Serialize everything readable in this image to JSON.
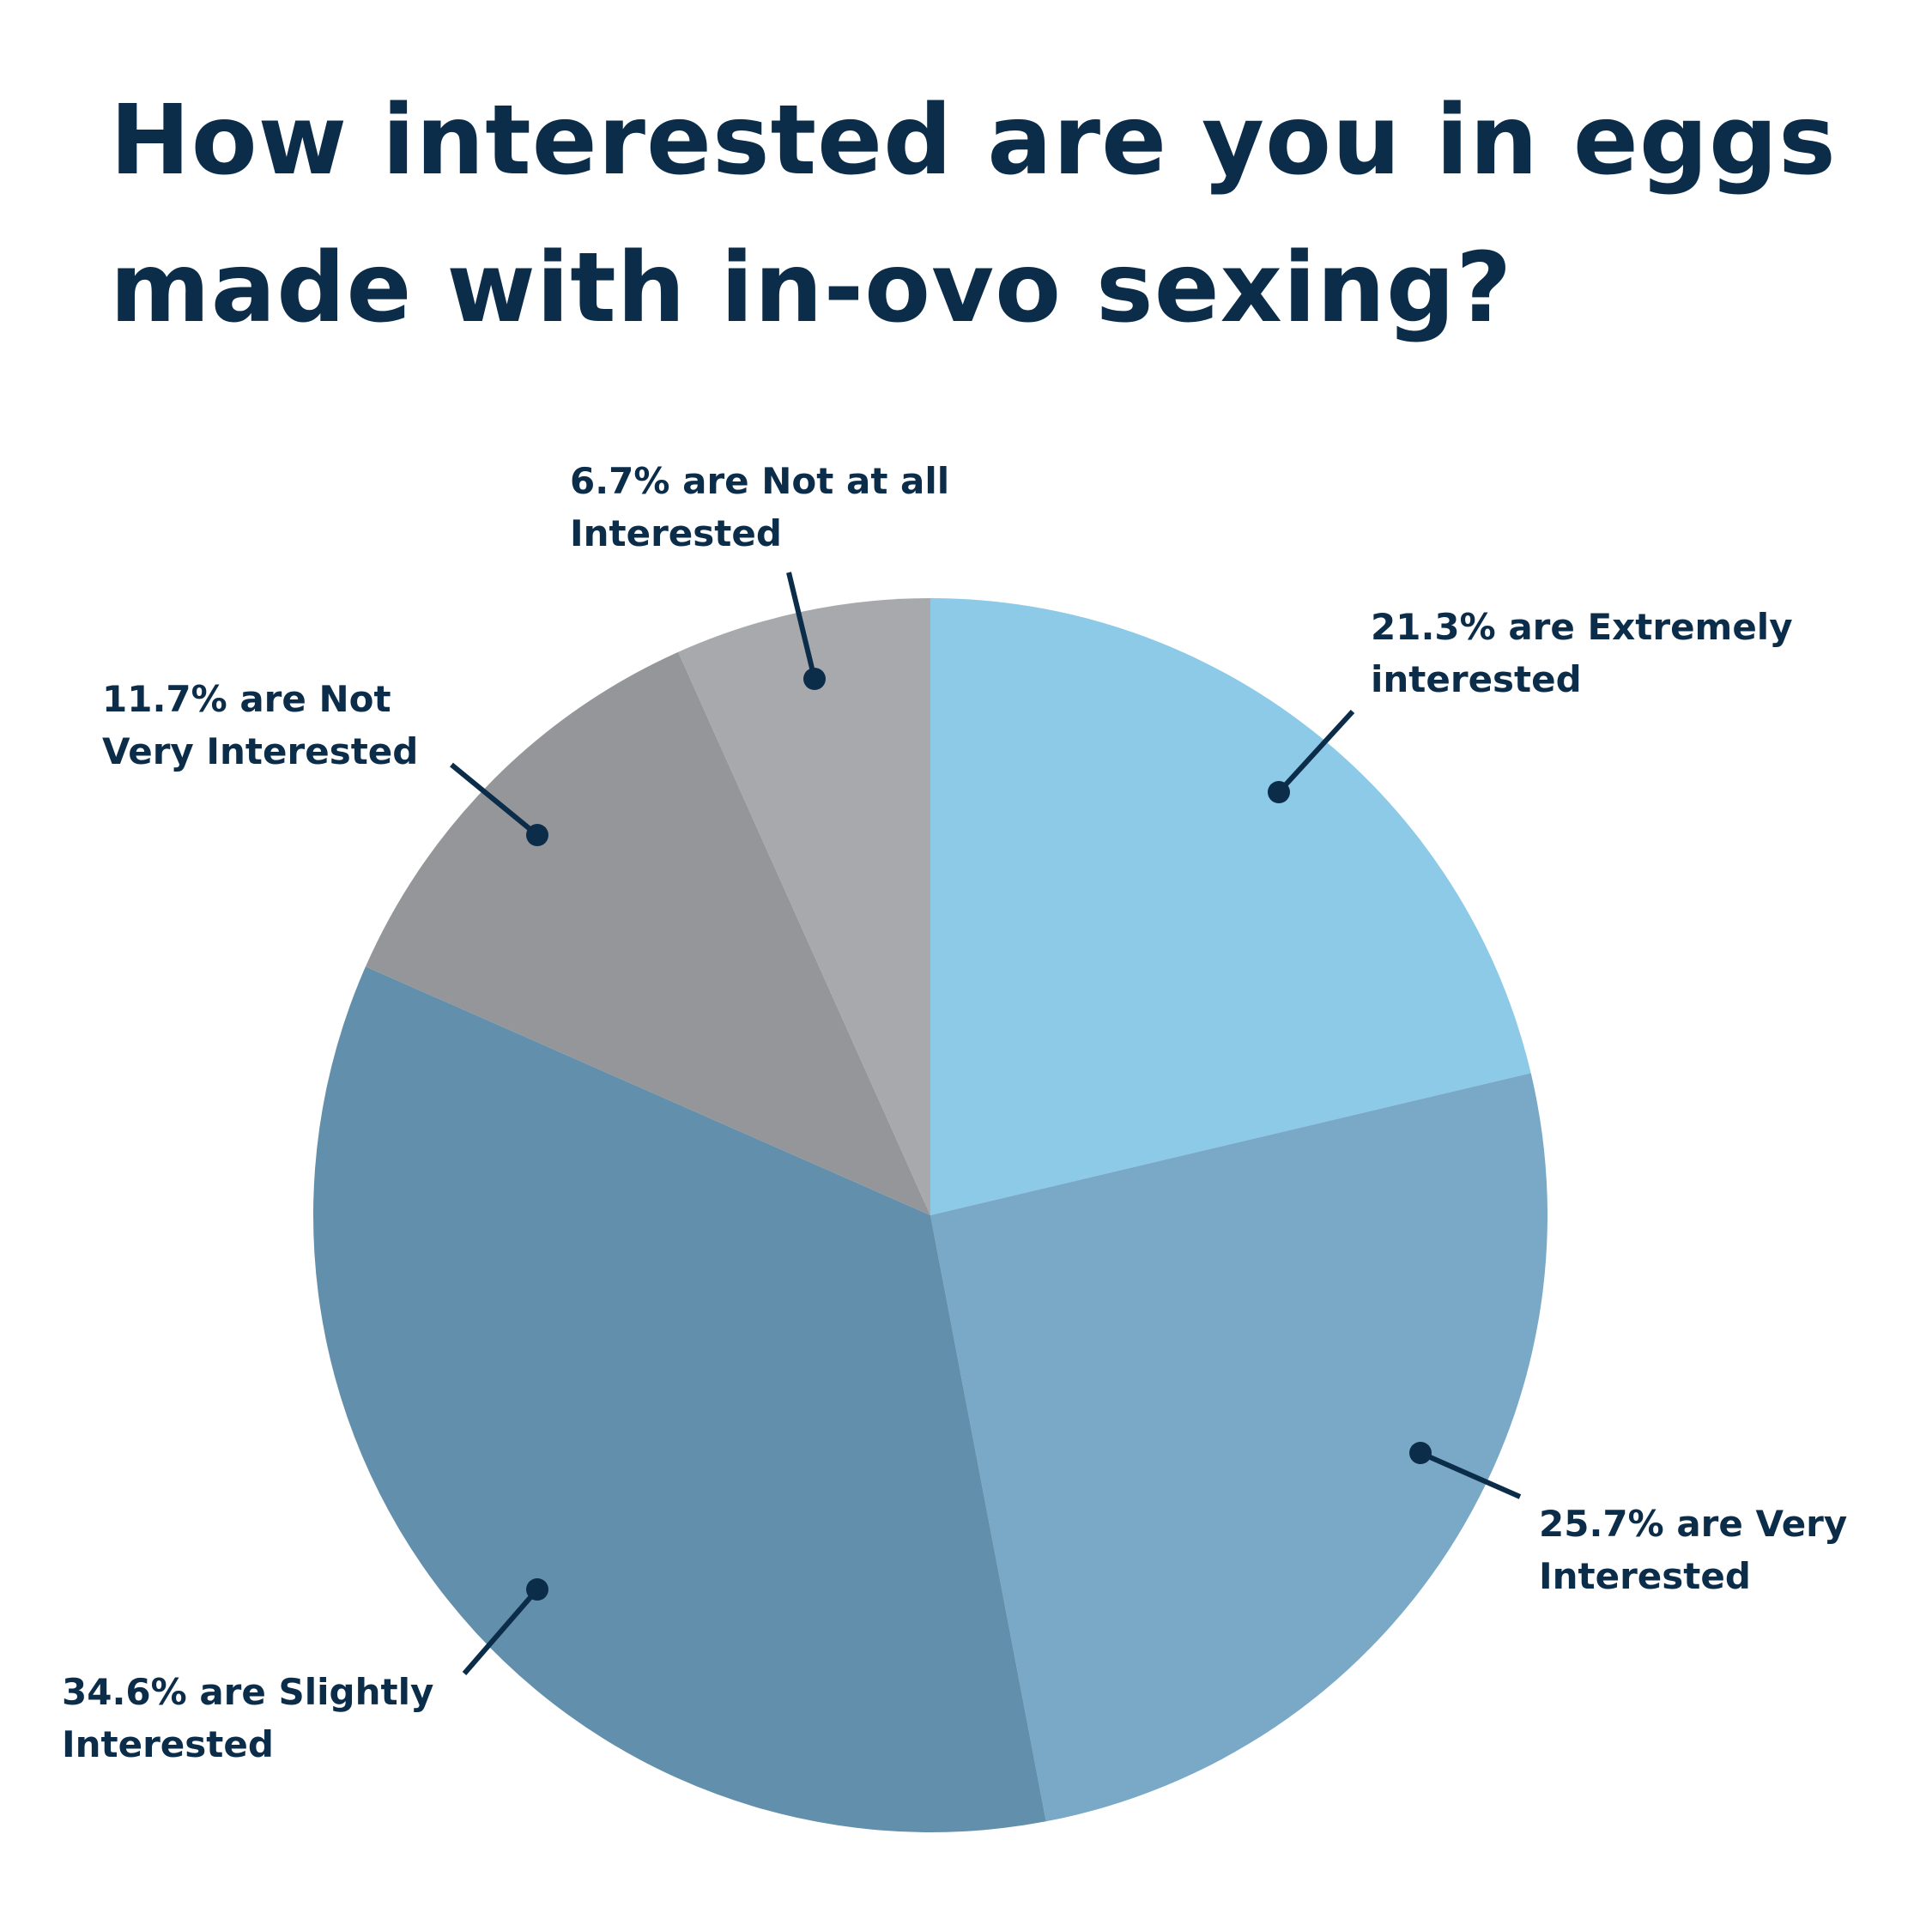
{
  "chart_data": {
    "type": "pie",
    "title": "How interested are you in eggs made with in-ovo sexing?",
    "values": [
      21.3,
      25.7,
      34.6,
      11.7,
      6.7
    ],
    "value_labels": [
      "21.3% are Extremely\ninterested",
      "25.7% are Very\nInterested",
      "34.6% are Slightly\nInterested",
      "11.7% are Not\nVery Interested",
      "6.7% are Not at all\nInterested"
    ],
    "colors": [
      "#8ccae7",
      "#79a9c6",
      "#628fab",
      "#959699",
      "#a8a9ad"
    ]
  }
}
